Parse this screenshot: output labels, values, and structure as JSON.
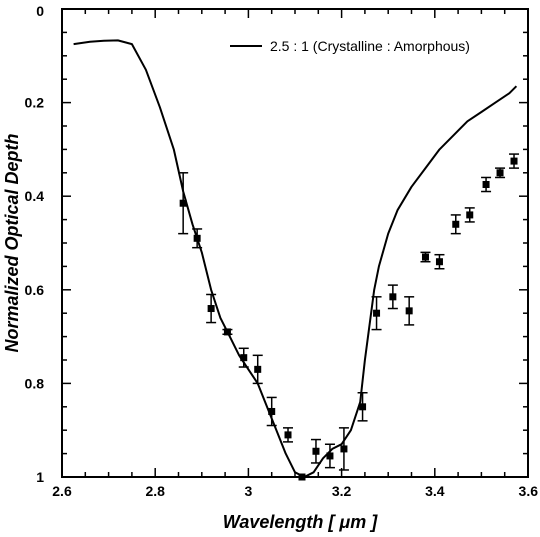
{
  "chart_data": {
    "type": "line+scatter",
    "xlabel": "Wavelength [ μm ]",
    "ylabel": "Normalized Optical Depth",
    "xlim": [
      2.6,
      3.6
    ],
    "ylim": [
      0,
      1
    ],
    "y_inverted": true,
    "x_ticks": [
      "2.6",
      "2.8",
      "3",
      "3.2",
      "3.4",
      "3.6"
    ],
    "y_ticks": [
      "0",
      "0.2",
      "0.4",
      "0.6",
      "0.8",
      "1"
    ],
    "grid": false,
    "legend_position": "top-right",
    "series": [
      {
        "name": "2.5 : 1 (Crystalline : Amorphous)",
        "style": "line",
        "color": "#000000",
        "points": [
          [
            2.625,
            0.075
          ],
          [
            2.66,
            0.07
          ],
          [
            2.69,
            0.068
          ],
          [
            2.72,
            0.067
          ],
          [
            2.75,
            0.075
          ],
          [
            2.78,
            0.13
          ],
          [
            2.81,
            0.21
          ],
          [
            2.84,
            0.3
          ],
          [
            2.86,
            0.39
          ],
          [
            2.88,
            0.46
          ],
          [
            2.9,
            0.52
          ],
          [
            2.92,
            0.6
          ],
          [
            2.94,
            0.66
          ],
          [
            2.96,
            0.7
          ],
          [
            2.98,
            0.74
          ],
          [
            3.0,
            0.77
          ],
          [
            3.02,
            0.8
          ],
          [
            3.04,
            0.85
          ],
          [
            3.06,
            0.9
          ],
          [
            3.08,
            0.95
          ],
          [
            3.1,
            0.99
          ],
          [
            3.12,
            1.0
          ],
          [
            3.14,
            0.99
          ],
          [
            3.16,
            0.96
          ],
          [
            3.18,
            0.94
          ],
          [
            3.2,
            0.93
          ],
          [
            3.22,
            0.9
          ],
          [
            3.24,
            0.84
          ],
          [
            3.25,
            0.75
          ],
          [
            3.27,
            0.6
          ],
          [
            3.28,
            0.55
          ],
          [
            3.3,
            0.48
          ],
          [
            3.32,
            0.43
          ],
          [
            3.35,
            0.38
          ],
          [
            3.38,
            0.34
          ],
          [
            3.41,
            0.3
          ],
          [
            3.44,
            0.27
          ],
          [
            3.47,
            0.24
          ],
          [
            3.5,
            0.22
          ],
          [
            3.53,
            0.2
          ],
          [
            3.56,
            0.18
          ],
          [
            3.575,
            0.165
          ]
        ]
      },
      {
        "name": "",
        "style": "scatter-with-errorbars",
        "color": "#000000",
        "points": [
          {
            "x": 2.86,
            "y": 0.415,
            "err": 0.065
          },
          {
            "x": 2.89,
            "y": 0.49,
            "err": 0.02
          },
          {
            "x": 2.92,
            "y": 0.64,
            "err": 0.03
          },
          {
            "x": 2.955,
            "y": 0.69,
            "err": 0.005
          },
          {
            "x": 2.99,
            "y": 0.745,
            "err": 0.02
          },
          {
            "x": 3.02,
            "y": 0.77,
            "err": 0.03
          },
          {
            "x": 3.05,
            "y": 0.86,
            "err": 0.03
          },
          {
            "x": 3.085,
            "y": 0.91,
            "err": 0.015
          },
          {
            "x": 3.115,
            "y": 1.0,
            "err": 0.0
          },
          {
            "x": 3.145,
            "y": 0.945,
            "err": 0.025
          },
          {
            "x": 3.175,
            "y": 0.955,
            "err": 0.025
          },
          {
            "x": 3.205,
            "y": 0.94,
            "err": 0.045
          },
          {
            "x": 3.245,
            "y": 0.85,
            "err": 0.03
          },
          {
            "x": 3.275,
            "y": 0.65,
            "err": 0.035
          },
          {
            "x": 3.31,
            "y": 0.615,
            "err": 0.025
          },
          {
            "x": 3.345,
            "y": 0.645,
            "err": 0.03
          },
          {
            "x": 3.38,
            "y": 0.53,
            "err": 0.01
          },
          {
            "x": 3.41,
            "y": 0.54,
            "err": 0.015
          },
          {
            "x": 3.445,
            "y": 0.46,
            "err": 0.02
          },
          {
            "x": 3.475,
            "y": 0.44,
            "err": 0.015
          },
          {
            "x": 3.51,
            "y": 0.375,
            "err": 0.015
          },
          {
            "x": 3.54,
            "y": 0.35,
            "err": 0.01
          },
          {
            "x": 3.57,
            "y": 0.325,
            "err": 0.015
          }
        ]
      }
    ]
  }
}
